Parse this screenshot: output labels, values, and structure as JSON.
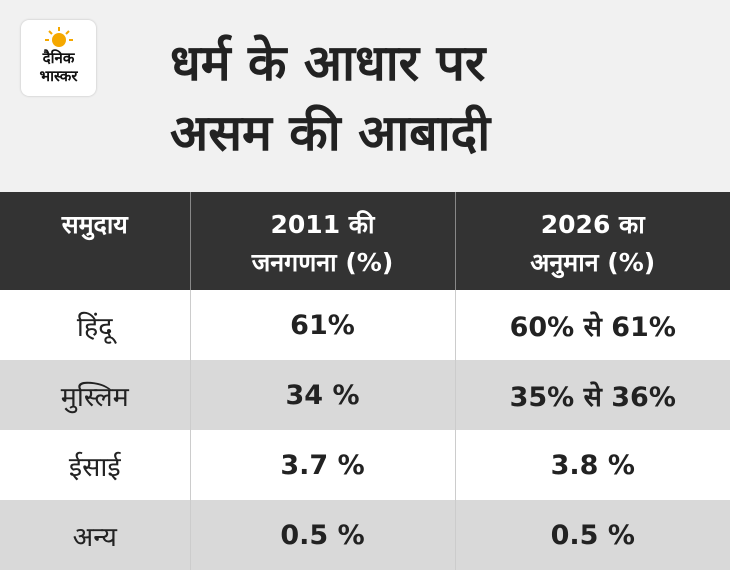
{
  "logo": {
    "lines": [
      "दैनिक",
      "भास्कर"
    ]
  },
  "header": {
    "title_lines": [
      "धर्म के आधार पर",
      "असम की आबादी"
    ]
  },
  "table": {
    "columns": [
      "समुदाय",
      "2011 की जनगणना (%)",
      "2026 का अनुमान (%)"
    ],
    "rows": [
      [
        "हिंदू",
        "61%",
        "60% से 61%"
      ],
      [
        "मुस्लिम",
        "34 %",
        "35% से 36%"
      ],
      [
        "ईसाई",
        "3.7 %",
        "3.8 %"
      ],
      [
        "अन्य",
        "0.5 %",
        "0.5 %"
      ]
    ]
  }
}
